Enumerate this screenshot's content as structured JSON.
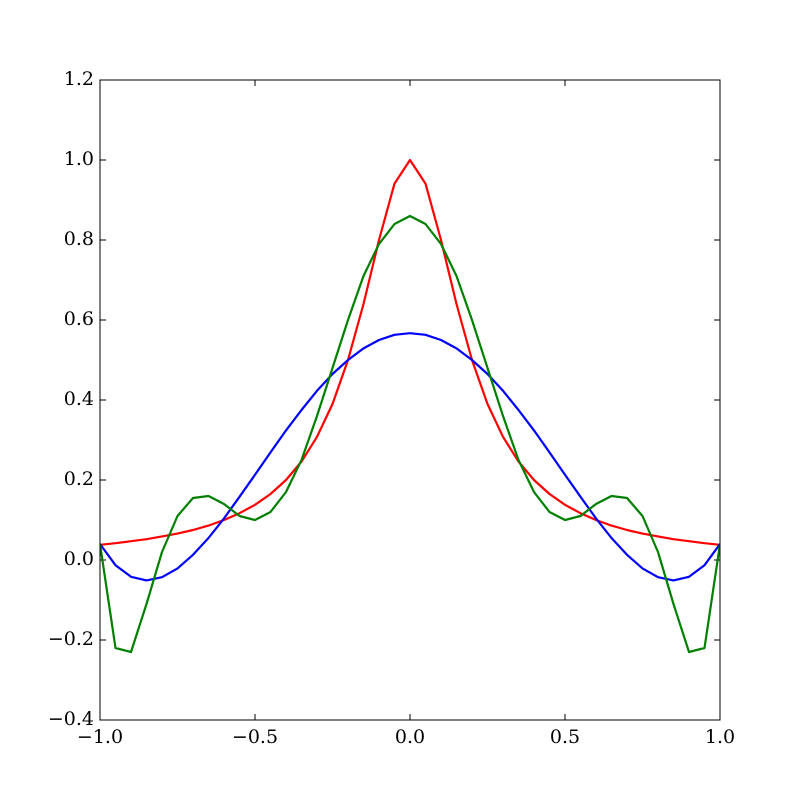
{
  "chart_data": {
    "type": "line",
    "x": [
      -1,
      -0.95,
      -0.9,
      -0.85,
      -0.8,
      -0.75,
      -0.7,
      -0.65,
      -0.6,
      -0.55,
      -0.5,
      -0.45,
      -0.4,
      -0.35,
      -0.3,
      -0.25,
      -0.2,
      -0.15,
      -0.1,
      -0.05,
      0,
      0.05,
      0.1,
      0.15,
      0.2,
      0.25,
      0.3,
      0.35,
      0.4,
      0.45,
      0.5,
      0.55,
      0.6,
      0.65,
      0.7,
      0.75,
      0.8,
      0.85,
      0.9,
      0.95,
      1
    ],
    "series": [
      {
        "color": "#ff0000",
        "values": [
          0.038,
          0.042,
          0.047,
          0.052,
          0.059,
          0.066,
          0.075,
          0.086,
          0.1,
          0.117,
          0.138,
          0.165,
          0.2,
          0.246,
          0.308,
          0.39,
          0.5,
          0.64,
          0.8,
          0.941,
          1,
          0.941,
          0.8,
          0.64,
          0.5,
          0.39,
          0.308,
          0.246,
          0.2,
          0.165,
          0.138,
          0.117,
          0.1,
          0.086,
          0.075,
          0.066,
          0.059,
          0.052,
          0.047,
          0.042,
          0.038
        ]
      },
      {
        "color": "#0000ff",
        "values": [
          0.04,
          -0.013,
          -0.042,
          -0.051,
          -0.043,
          -0.021,
          0.013,
          0.055,
          0.104,
          0.158,
          0.213,
          0.269,
          0.324,
          0.375,
          0.423,
          0.465,
          0.5,
          0.529,
          0.55,
          0.563,
          0.567,
          0.563,
          0.55,
          0.529,
          0.5,
          0.465,
          0.423,
          0.375,
          0.324,
          0.269,
          0.213,
          0.158,
          0.104,
          0.055,
          0.013,
          -0.021,
          -0.043,
          -0.051,
          -0.042,
          -0.013,
          0.04
        ]
      },
      {
        "color": "#008000",
        "values": [
          0.04,
          -0.22,
          -0.23,
          -0.11,
          0.02,
          0.11,
          0.155,
          0.16,
          0.14,
          0.11,
          0.1,
          0.12,
          0.17,
          0.25,
          0.36,
          0.48,
          0.6,
          0.71,
          0.79,
          0.84,
          0.86,
          0.84,
          0.79,
          0.71,
          0.6,
          0.48,
          0.36,
          0.25,
          0.17,
          0.12,
          0.1,
          0.11,
          0.14,
          0.16,
          0.155,
          0.11,
          0.02,
          -0.11,
          -0.23,
          -0.22,
          0.04
        ]
      }
    ],
    "xlim": [
      -1,
      1
    ],
    "xticks": [
      {
        "value": -1,
        "label": "−1.0"
      },
      {
        "value": -0.5,
        "label": "−0.5"
      },
      {
        "value": 0,
        "label": "0.0"
      },
      {
        "value": 0.5,
        "label": "0.5"
      },
      {
        "value": 1,
        "label": "1.0"
      }
    ],
    "ylim": [
      -0.4,
      1.2
    ],
    "yticks": [
      {
        "value": -0.4,
        "label": "−0.4"
      },
      {
        "value": -0.2,
        "label": "−0.2"
      },
      {
        "value": 0,
        "label": "0.0"
      },
      {
        "value": 0.2,
        "label": "0.2"
      },
      {
        "value": 0.4,
        "label": "0.4"
      },
      {
        "value": 0.6,
        "label": "0.6"
      },
      {
        "value": 0.8,
        "label": "0.8"
      },
      {
        "value": 1.0,
        "label": "1.0"
      },
      {
        "value": 1.2,
        "label": "1.2"
      }
    ],
    "grid": false
  }
}
